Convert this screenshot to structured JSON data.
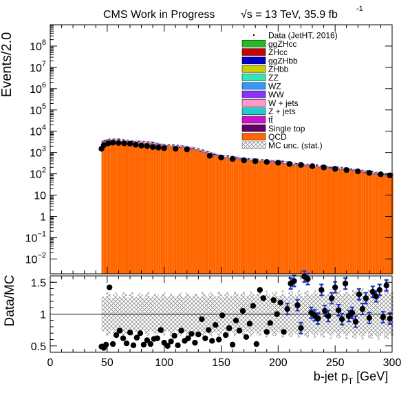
{
  "header": {
    "title": "CMS Work in Progress",
    "energy": "√s = 13 TeV, 35.9 fb",
    "energy_sup": "-1"
  },
  "colors": {
    "ggZHcc": "#22bb22",
    "ZHcc": "#cc0000",
    "ggZHbb": "#0000cc",
    "ZHbb": "#cccc00",
    "ZZ": "#33e6b3",
    "WZ": "#3399ff",
    "WW": "#8833ff",
    "Wjets": "#ff99cc",
    "Zjets": "#22cccc",
    "ttbar": "#cc11cc",
    "singletop": "#660066",
    "QCD": "#ff6600",
    "data": "#000000"
  },
  "chart_data": [
    {
      "type": "bar",
      "panel": "main",
      "title": "",
      "xlabel": "b-jet p_T [GeV]",
      "ylabel": "Events/2.0",
      "xlim": [
        0,
        300
      ],
      "ylim": [
        0.002,
        1000000000
      ],
      "log_y": true,
      "bin_width": 2.0,
      "x_ticks": [
        0,
        50,
        100,
        150,
        200,
        250,
        300
      ],
      "x_tick_labels": [
        "0",
        "50",
        "100",
        "150",
        "200",
        "250",
        "300"
      ],
      "y_ticks": [
        0.01,
        0.1,
        1,
        10,
        100,
        1000,
        10000,
        100000,
        1000000,
        10000000,
        100000000
      ],
      "y_tick_labels": [
        {
          "base": "10",
          "exp": "−2"
        },
        {
          "base": "10",
          "exp": "−1"
        },
        {
          "base": "1",
          "exp": ""
        },
        {
          "base": "10",
          "exp": ""
        },
        {
          "base": "10",
          "exp": "2"
        },
        {
          "base": "10",
          "exp": "3"
        },
        {
          "base": "10",
          "exp": "4"
        },
        {
          "base": "10",
          "exp": "5"
        },
        {
          "base": "10",
          "exp": "6"
        },
        {
          "base": "10",
          "exp": "7"
        },
        {
          "base": "10",
          "exp": "8"
        }
      ],
      "legend_position": "top-right",
      "legend": [
        {
          "key": "data",
          "label": "Data (JetHT, 2016)",
          "style": "marker"
        },
        {
          "key": "ggZHcc",
          "label": "ggZHcc",
          "style": "box"
        },
        {
          "key": "ZHcc",
          "label": "ZHcc",
          "style": "box"
        },
        {
          "key": "ggZHbb",
          "label": "ggZHbb",
          "style": "box"
        },
        {
          "key": "ZHbb",
          "label": "ZHbb",
          "style": "box"
        },
        {
          "key": "ZZ",
          "label": "ZZ",
          "style": "box"
        },
        {
          "key": "WZ",
          "label": "WZ",
          "style": "box"
        },
        {
          "key": "WW",
          "label": "WW",
          "style": "box"
        },
        {
          "key": "Wjets",
          "label": "W + jets",
          "style": "box"
        },
        {
          "key": "Zjets",
          "label": "Z + jets",
          "style": "box"
        },
        {
          "key": "ttbar",
          "label": "tt̄",
          "style": "box"
        },
        {
          "key": "singletop",
          "label": "Single top",
          "style": "box"
        },
        {
          "key": "QCD",
          "label": "QCD",
          "style": "box"
        },
        {
          "key": "mcunc",
          "label": "MC unc. (stat.)",
          "style": "hatch"
        }
      ],
      "mc_total": {
        "x": [
          45,
          46,
          50,
          60,
          70,
          80,
          90,
          100,
          110,
          120,
          130,
          140,
          150,
          160,
          170,
          180,
          190,
          200,
          210,
          220,
          230,
          240,
          250,
          260,
          270,
          280,
          290,
          300
        ],
        "y": [
          4000,
          3000,
          3800,
          3600,
          3200,
          2900,
          2600,
          2100,
          1900,
          1700,
          1300,
          900,
          640,
          560,
          470,
          420,
          380,
          360,
          290,
          260,
          230,
          205,
          180,
          160,
          135,
          115,
          95,
          85
        ]
      },
      "data_points": {
        "x": [
          45,
          47,
          51,
          55,
          60,
          65,
          70,
          75,
          80,
          85,
          90,
          95,
          100,
          110,
          120,
          140,
          150,
          160,
          170,
          180,
          190,
          200,
          210,
          220,
          230,
          240,
          250,
          260,
          270,
          280,
          290,
          298
        ],
        "y": [
          1500,
          2200,
          2700,
          2900,
          2800,
          2700,
          2600,
          2300,
          2100,
          2000,
          1800,
          1700,
          1600,
          1500,
          1400,
          700,
          580,
          500,
          430,
          390,
          360,
          330,
          290,
          260,
          230,
          200,
          170,
          150,
          130,
          110,
          95,
          85
        ]
      }
    },
    {
      "type": "scatter",
      "panel": "ratio",
      "title": "",
      "xlabel": "b-jet p_T [GeV]",
      "ylabel": "Data/MC",
      "xlim": [
        0,
        300
      ],
      "ylim": [
        0.4,
        1.6
      ],
      "y_ticks": [
        0.5,
        1,
        1.5
      ],
      "y_tick_labels": [
        "0.5",
        "1",
        "1.5"
      ],
      "reference_line": 1.0,
      "unc_band": {
        "x": [
          45,
          100,
          150,
          200,
          250,
          300
        ],
        "half_width": [
          0.3,
          0.3,
          0.31,
          0.32,
          0.34,
          0.36
        ]
      },
      "points": {
        "x": [
          45,
          47,
          49,
          52,
          55,
          58,
          61,
          64,
          67,
          70,
          73,
          76,
          79,
          82,
          85,
          88,
          91,
          94,
          97,
          100,
          103,
          106,
          109,
          112,
          115,
          118,
          121,
          124,
          127,
          130,
          133,
          136,
          139,
          142,
          145,
          148,
          151,
          154,
          157,
          160,
          163,
          166,
          169,
          172,
          175,
          178,
          181,
          184,
          187,
          190,
          193,
          196,
          199,
          202,
          205,
          208,
          211,
          214,
          217,
          220,
          223,
          226,
          229,
          232,
          235,
          238,
          241,
          244,
          247,
          250,
          253,
          256,
          259,
          262,
          265,
          268,
          271,
          274,
          277,
          280,
          283,
          286,
          289,
          292,
          295,
          298
        ],
        "y": [
          0.49,
          0.47,
          0.52,
          1.42,
          0.53,
          0.67,
          0.74,
          0.62,
          0.54,
          0.71,
          0.51,
          0.63,
          0.7,
          0.52,
          0.59,
          0.53,
          0.61,
          0.62,
          0.75,
          0.55,
          0.5,
          0.57,
          0.66,
          0.51,
          0.74,
          0.58,
          0.62,
          0.69,
          0.55,
          0.68,
          0.92,
          0.62,
          0.75,
          0.58,
          0.83,
          0.6,
          0.98,
          0.67,
          0.78,
          0.52,
          0.9,
          0.74,
          1.05,
          0.64,
          0.85,
          1.13,
          0.53,
          1.38,
          1.25,
          0.72,
          0.86,
          1.22,
          1.0,
          1.18,
          0.72,
          1.08,
          1.48,
          1.52,
          1.14,
          0.78,
          1.59,
          1.55,
          1.02,
          0.98,
          0.93,
          1.38,
          1.05,
          0.97,
          1.25,
          1.42,
          1.06,
          0.92,
          1.48,
          0.97,
          1.02,
          0.88,
          1.31,
          1.08,
          1.25,
          0.94,
          1.35,
          1.28,
          1.38,
          0.95,
          1.45,
          0.93
        ]
      }
    }
  ]
}
